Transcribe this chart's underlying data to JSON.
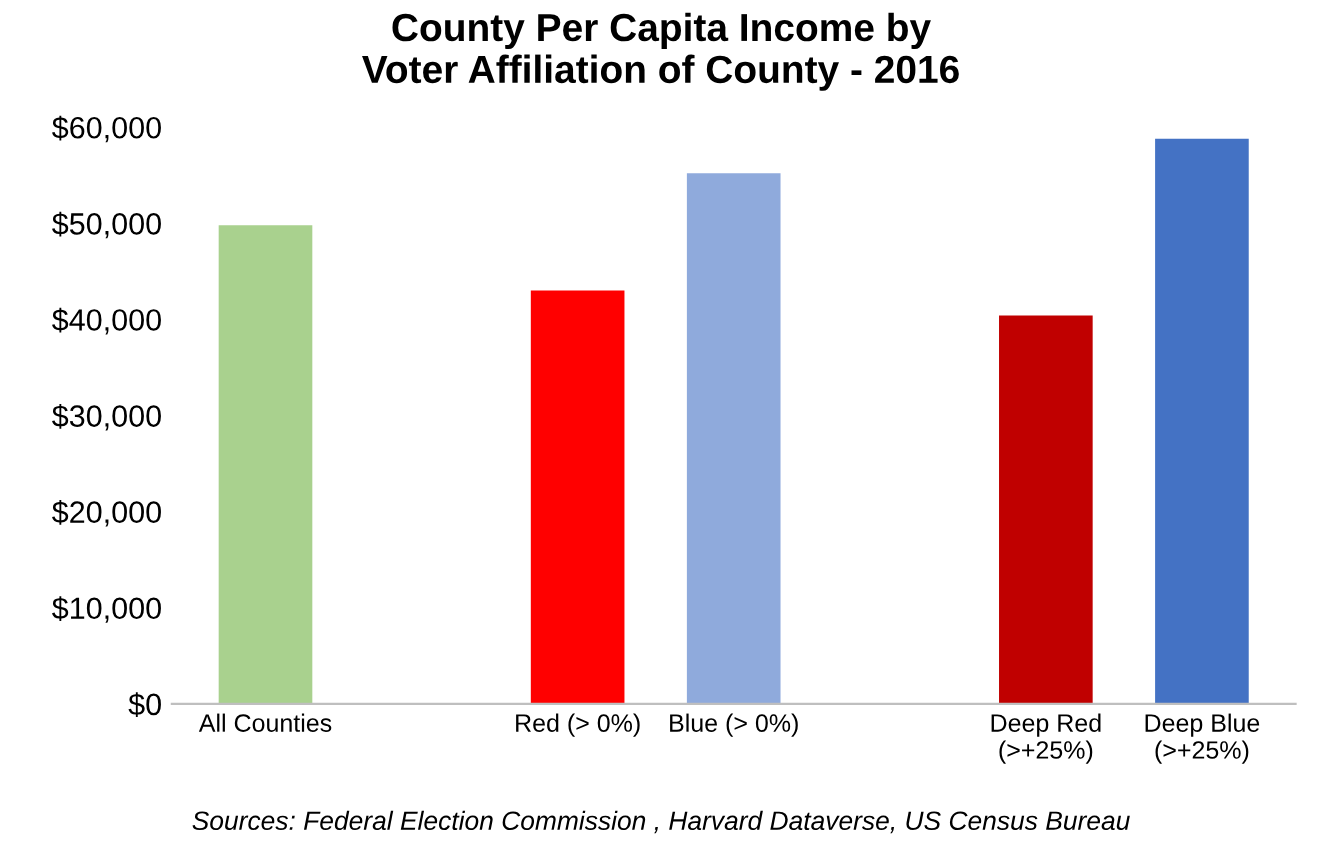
{
  "chart_data": {
    "type": "bar",
    "title": "County Per Capita Income by\nVoter Affiliation of County - 2016",
    "categories": [
      "All Counties",
      null,
      "Red (> 0%)",
      "Blue (> 0%)",
      null,
      "Deep Red\n(>+25%)",
      "Deep Blue\n(>+25%)"
    ],
    "values": [
      49800,
      null,
      43000,
      55200,
      null,
      40400,
      58800
    ],
    "colors": [
      "#a9d18e",
      "#ffffff",
      "#ff0000",
      "#8faadc",
      "#ffffff",
      "#c00000",
      "#4472c4"
    ],
    "ylim": [
      0,
      60000
    ],
    "yticks": [
      {
        "value": 0,
        "label": "$0"
      },
      {
        "value": 10000,
        "label": "$10,000"
      },
      {
        "value": 20000,
        "label": "$20,000"
      },
      {
        "value": 30000,
        "label": "$30,000"
      },
      {
        "value": 40000,
        "label": "$40,000"
      },
      {
        "value": 50000,
        "label": "$50,000"
      },
      {
        "value": 60000,
        "label": "$60,000"
      }
    ],
    "grid": false,
    "annotations": [
      "Sources: Federal Election Commission , Harvard Dataverse, US Census Bureau"
    ]
  }
}
